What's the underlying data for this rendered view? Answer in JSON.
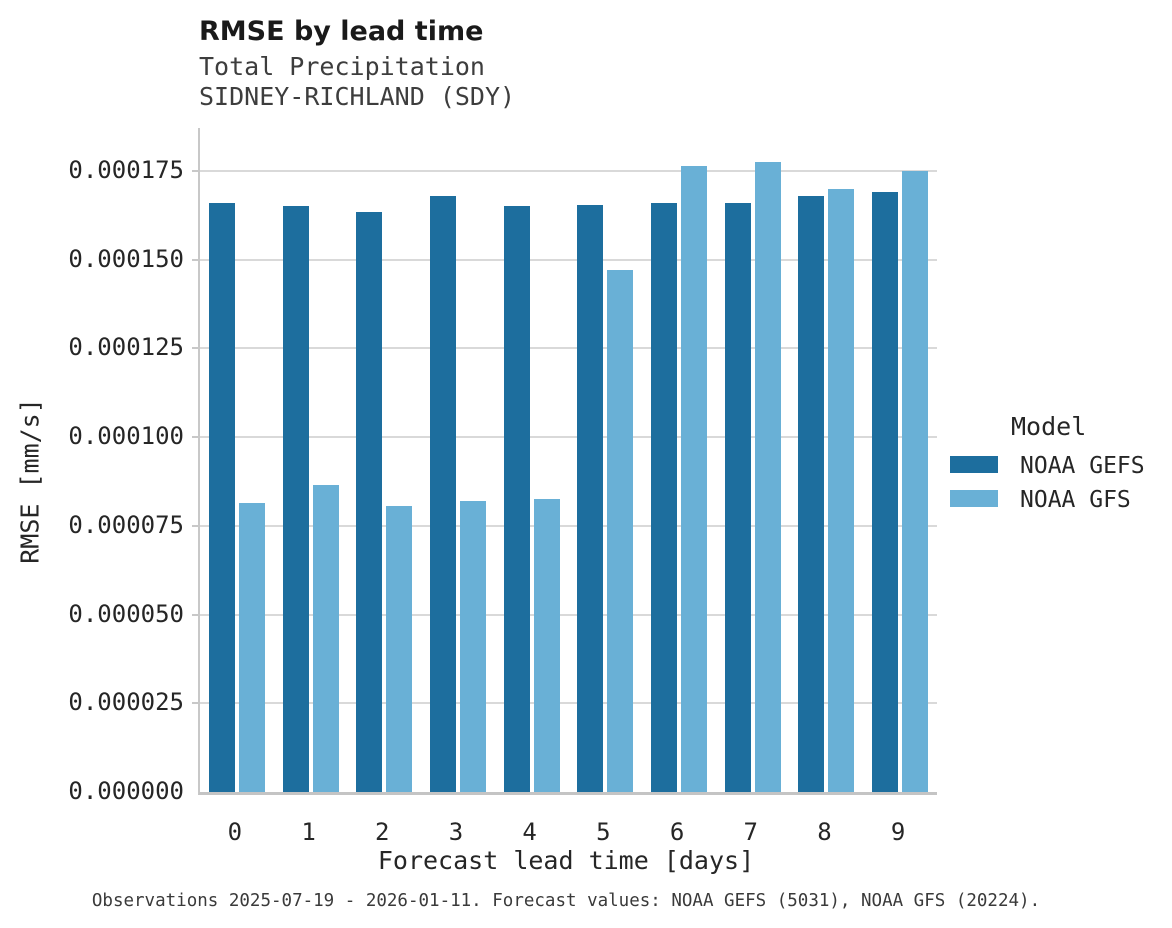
{
  "header": {
    "title": "RMSE by lead time",
    "subtitle_line1": "Total Precipitation",
    "subtitle_line2": "SIDNEY-RICHLAND (SDY)"
  },
  "legend": {
    "title": "Model",
    "items": [
      {
        "label": "NOAA GEFS",
        "color": "#1d6e9e"
      },
      {
        "label": "NOAA GFS",
        "color": "#69b0d6"
      }
    ]
  },
  "caption": "Observations 2025-07-19 - 2026-01-11. Forecast values: NOAA GEFS (5031), NOAA GFS (20224).",
  "chart_data": {
    "type": "bar",
    "title": "RMSE by lead time",
    "subtitle": [
      "Total Precipitation",
      "SIDNEY-RICHLAND (SDY)"
    ],
    "xlabel": "Forecast lead time [days]",
    "ylabel": "RMSE [mm/s]",
    "categories": [
      "0",
      "1",
      "2",
      "3",
      "4",
      "5",
      "6",
      "7",
      "8",
      "9"
    ],
    "series": [
      {
        "name": "NOAA GEFS",
        "color": "#1d6e9e",
        "values": [
          0.000166,
          0.000165,
          0.0001635,
          0.000168,
          0.000165,
          0.0001655,
          0.000166,
          0.000166,
          0.000168,
          0.000169
        ]
      },
      {
        "name": "NOAA GFS",
        "color": "#69b0d6",
        "values": [
          8.15e-05,
          8.65e-05,
          8.05e-05,
          8.2e-05,
          8.25e-05,
          0.000147,
          0.0001765,
          0.0001775,
          0.00017,
          0.000175
        ]
      }
    ],
    "yticks": [
      0,
      2.5e-05,
      5e-05,
      7.5e-05,
      0.0001,
      0.000125,
      0.00015,
      0.000175
    ],
    "ytick_labels": [
      "0.000000",
      "0.000025",
      "0.000050",
      "0.000075",
      "0.000100",
      "0.000125",
      "0.000150",
      "0.000175"
    ],
    "ylim": [
      0,
      0.0001871
    ],
    "grid": "horizontal",
    "grid_color": "#d9d9d9",
    "legend_position": "right"
  }
}
